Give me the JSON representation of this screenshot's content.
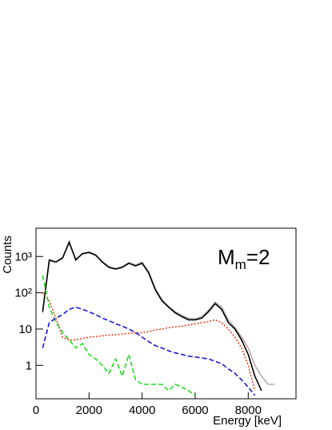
{
  "chart_data": {
    "type": "line",
    "annotation": {
      "base": "M",
      "subscript": "m",
      "text": "=2"
    },
    "xlabel": "Energy [keV]",
    "ylabel": "Counts",
    "xlim": [
      0,
      9800
    ],
    "xticks": [
      0,
      2000,
      4000,
      6000,
      8000
    ],
    "ylim": [
      0.12,
      6000
    ],
    "log_y": true,
    "yticks": [
      1,
      10,
      {
        "value": 100,
        "label": "10²"
      },
      {
        "value": 1000,
        "label": "10³"
      }
    ],
    "x": [
      250,
      500,
      750,
      1000,
      1250,
      1500,
      1750,
      2000,
      2250,
      2500,
      2750,
      3000,
      3250,
      3500,
      3750,
      4000,
      4250,
      4500,
      4750,
      5000,
      5250,
      5500,
      5750,
      6000,
      6250,
      6500,
      6750,
      7000,
      7250,
      7500,
      7750,
      8000,
      8250,
      8500,
      8750,
      9000
    ],
    "series": [
      {
        "color": "#b8aca8",
        "style": "solid",
        "values": [
          28,
          750,
          720,
          950,
          2300,
          850,
          1150,
          1250,
          1050,
          720,
          520,
          470,
          520,
          680,
          580,
          700,
          380,
          130,
          65,
          42,
          30,
          24,
          20,
          19,
          22,
          33,
          55,
          40,
          18,
          11,
          6,
          3,
          1,
          0.5,
          0.3,
          0.3
        ]
      },
      {
        "color": "#000000",
        "style": "solid",
        "values": [
          30,
          800,
          700,
          900,
          2500,
          800,
          1200,
          1300,
          1100,
          700,
          500,
          450,
          500,
          650,
          550,
          650,
          350,
          120,
          60,
          40,
          28,
          22,
          18,
          18,
          20,
          30,
          50,
          35,
          15,
          10,
          5,
          2,
          0.5,
          0.2,
          null,
          null
        ]
      },
      {
        "color": "#e8401c",
        "style": "dotted",
        "values": [
          100,
          60,
          20,
          6,
          5,
          5,
          5.5,
          6,
          6.2,
          6.5,
          6.8,
          7,
          7.3,
          7.6,
          7.8,
          8,
          8.5,
          9.5,
          10,
          11,
          11.5,
          12,
          13,
          14,
          15,
          16,
          18,
          15,
          10,
          6,
          3,
          1,
          0.2,
          null,
          null,
          null
        ]
      },
      {
        "color": "#22dd22",
        "style": "dashed",
        "values": [
          300,
          40,
          15,
          8,
          5,
          3,
          4,
          2,
          1.5,
          1,
          0.6,
          1.5,
          0.5,
          2,
          0.4,
          0.3,
          0.3,
          0.3,
          0.3,
          0.2,
          0.3,
          0.25,
          0.2,
          0.15,
          null,
          null,
          null,
          null,
          null,
          null,
          null,
          null,
          null,
          null,
          null,
          null
        ]
      },
      {
        "color": "#1a1ad0",
        "style": "dashed",
        "values": [
          3,
          15,
          20,
          25,
          35,
          40,
          35,
          30,
          25,
          20,
          17,
          14,
          12,
          10,
          8,
          6,
          4.5,
          3.5,
          3,
          2.5,
          2.2,
          2,
          1.8,
          1.7,
          1.6,
          1.5,
          1.3,
          1.1,
          0.8,
          0.6,
          0.4,
          0.25,
          0.15,
          null,
          null,
          null
        ]
      }
    ]
  }
}
